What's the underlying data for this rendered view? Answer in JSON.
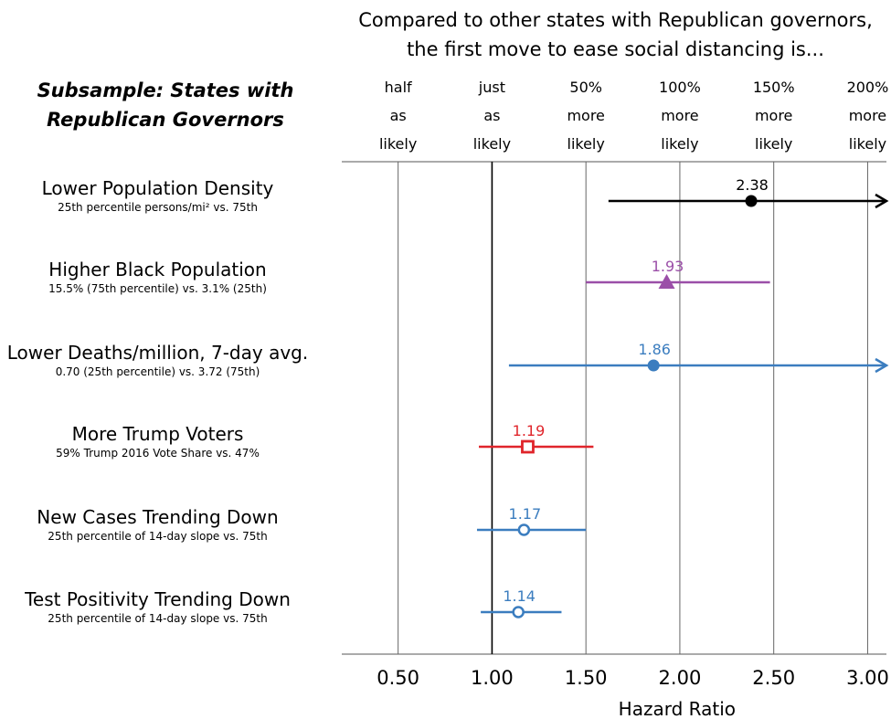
{
  "header": {
    "title_lines": [
      "Compared to other states with Republican governors,",
      "the first move to ease social distancing is..."
    ],
    "subsample_lines": [
      "Subsample: States with",
      "Republican Governors"
    ]
  },
  "column_labels": [
    {
      "x": 0.5,
      "lines": [
        "half",
        "as",
        "likely"
      ]
    },
    {
      "x": 1.0,
      "lines": [
        "just",
        "as",
        "likely"
      ]
    },
    {
      "x": 1.5,
      "lines": [
        "50%",
        "more",
        "likely"
      ]
    },
    {
      "x": 2.0,
      "lines": [
        "100%",
        "more",
        "likely"
      ]
    },
    {
      "x": 2.5,
      "lines": [
        "150%",
        "more",
        "likely"
      ]
    },
    {
      "x": 3.0,
      "lines": [
        "200%",
        "more",
        "likely"
      ]
    }
  ],
  "chart_data": {
    "type": "scatter",
    "subtype": "forest plot",
    "xlabel": "Hazard Ratio",
    "xlim": [
      0.2,
      3.1
    ],
    "xticks": [
      0.5,
      1.0,
      1.5,
      2.0,
      2.5,
      3.0
    ],
    "xtick_labels": [
      "0.50",
      "1.00",
      "1.50",
      "2.00",
      "2.50",
      "3.00"
    ],
    "reference_line": 1.0,
    "grid": "vertical lines at tick values",
    "series": [
      {
        "label": "Lower Population Density",
        "sublabel": "25th percentile persons/mi² vs. 75th",
        "estimate": 2.38,
        "estimate_label": "2.38",
        "ci_low": 1.62,
        "ci_high": 3.1,
        "ci_high_truncated": true,
        "marker": "filled-circle",
        "color": "#000000"
      },
      {
        "label": "Higher Black Population",
        "sublabel": "15.5% (75th percentile) vs. 3.1% (25th)",
        "estimate": 1.93,
        "estimate_label": "1.93",
        "ci_low": 1.5,
        "ci_high": 2.48,
        "ci_high_truncated": false,
        "marker": "filled-triangle",
        "color": "#9b4fa8"
      },
      {
        "label": "Lower Deaths/million, 7-day avg.",
        "sublabel": "0.70 (25th percentile) vs. 3.72 (75th)",
        "estimate": 1.86,
        "estimate_label": "1.86",
        "ci_low": 1.09,
        "ci_high": 3.1,
        "ci_high_truncated": true,
        "marker": "filled-circle",
        "color": "#3b7dbf"
      },
      {
        "label": "More Trump Voters",
        "sublabel": "59% Trump 2016 Vote Share vs. 47%",
        "estimate": 1.19,
        "estimate_label": "1.19",
        "ci_low": 0.93,
        "ci_high": 1.54,
        "ci_high_truncated": false,
        "marker": "hollow-square",
        "color": "#e0252b"
      },
      {
        "label": "New Cases Trending Down",
        "sublabel": "25th percentile of 14-day slope vs. 75th",
        "estimate": 1.17,
        "estimate_label": "1.17",
        "ci_low": 0.92,
        "ci_high": 1.5,
        "ci_high_truncated": false,
        "marker": "hollow-circle",
        "color": "#3b7dbf"
      },
      {
        "label": "Test Positivity Trending Down",
        "sublabel": "25th percentile of 14-day slope vs. 75th",
        "estimate": 1.14,
        "estimate_label": "1.14",
        "ci_low": 0.94,
        "ci_high": 1.37,
        "ci_high_truncated": false,
        "marker": "hollow-circle",
        "color": "#3b7dbf"
      }
    ]
  }
}
